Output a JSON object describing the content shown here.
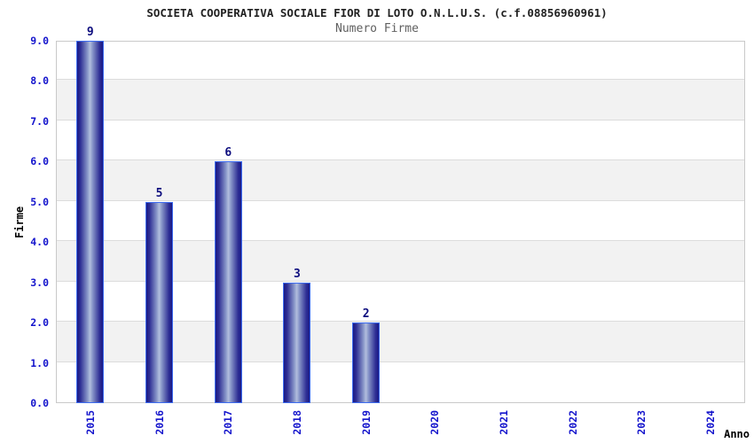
{
  "chart_data": {
    "type": "bar",
    "title": "SOCIETA COOPERATIVA SOCIALE FIOR DI LOTO O.N.L.U.S. (c.f.08856960961)",
    "subtitle": "Numero Firme",
    "xlabel": "Anno",
    "ylabel": "Firme",
    "categories": [
      "2015",
      "2016",
      "2017",
      "2018",
      "2019",
      "2020",
      "2021",
      "2022",
      "2023",
      "2024"
    ],
    "values": [
      9,
      5,
      6,
      3,
      2,
      0,
      0,
      0,
      0,
      0
    ],
    "ylim": [
      0,
      9
    ],
    "ytick_step": 1,
    "ytick_labels": [
      "0.0",
      "1.0",
      "2.0",
      "3.0",
      "4.0",
      "5.0",
      "6.0",
      "7.0",
      "8.0",
      "9.0"
    ],
    "grid": true,
    "legend": "none",
    "bands_alternating": true,
    "colors": {
      "bar_dark": "#1a1a85",
      "bar_mid": "#2d2d94",
      "bar_light": "#b2bede",
      "bar_border": "#3d6cf0",
      "tick_label": "#1414cc",
      "value_label": "#0d0d7e",
      "band": "#f2f2f2",
      "gridline": "#dcdcdc",
      "plot_border": "#c9c9c9",
      "title": "#222222",
      "subtitle": "#606060"
    }
  }
}
